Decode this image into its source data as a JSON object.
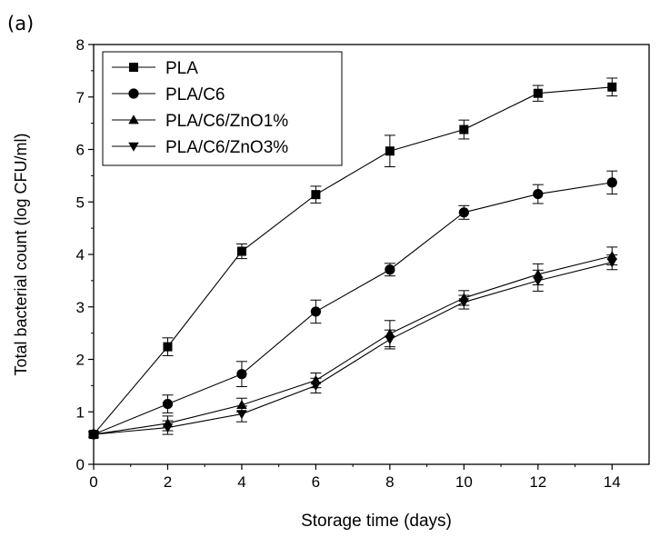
{
  "panel_label": "(a)",
  "chart_data": {
    "type": "line",
    "title": "",
    "xlabel": "Storage time (days)",
    "ylabel": "Total bacterial count (log CFU/ml)",
    "xlim": [
      0,
      15
    ],
    "ylim": [
      0,
      8
    ],
    "xticks": [
      0,
      2,
      4,
      6,
      8,
      10,
      12,
      14
    ],
    "yticks": [
      0,
      1,
      2,
      3,
      4,
      5,
      6,
      7,
      8
    ],
    "legend_position": "top-left",
    "grid": false,
    "x": [
      0,
      2,
      4,
      6,
      8,
      10,
      12,
      14
    ],
    "series": [
      {
        "name": "PLA",
        "marker": "square",
        "values": [
          0.57,
          2.24,
          4.06,
          5.14,
          5.97,
          6.38,
          7.07,
          7.19
        ],
        "errors": [
          0.05,
          0.17,
          0.14,
          0.16,
          0.3,
          0.18,
          0.15,
          0.17
        ]
      },
      {
        "name": "PLA/C6",
        "marker": "circle",
        "values": [
          0.57,
          1.15,
          1.72,
          2.91,
          3.71,
          4.8,
          5.15,
          5.37
        ],
        "errors": [
          0.05,
          0.17,
          0.24,
          0.22,
          0.12,
          0.13,
          0.18,
          0.22
        ]
      },
      {
        "name": "PLA/C6/ZnO1%",
        "marker": "triangle-up",
        "values": [
          0.57,
          0.78,
          1.13,
          1.6,
          2.49,
          3.17,
          3.62,
          3.97
        ],
        "errors": [
          0.05,
          0.14,
          0.13,
          0.14,
          0.25,
          0.14,
          0.2,
          0.17
        ]
      },
      {
        "name": "PLA/C6/ZnO3%",
        "marker": "triangle-down",
        "values": [
          0.57,
          0.7,
          0.96,
          1.5,
          2.38,
          3.09,
          3.5,
          3.85
        ],
        "errors": [
          0.05,
          0.13,
          0.15,
          0.14,
          0.18,
          0.13,
          0.2,
          0.14
        ]
      }
    ]
  }
}
